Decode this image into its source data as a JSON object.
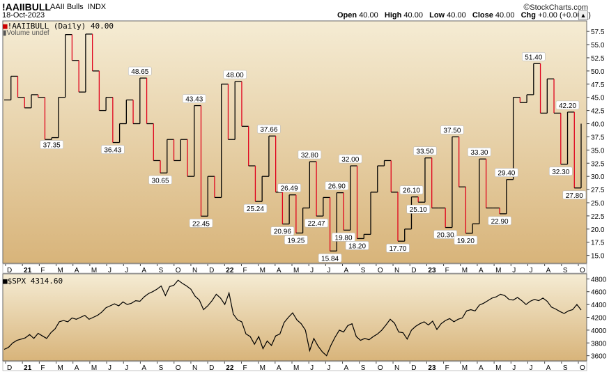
{
  "header": {
    "symbol": "!AAIIBULL",
    "name": "AAII Bulls",
    "exchange": "INDX",
    "date": "18-Oct-2023",
    "open_label": "Open",
    "open": "40.00",
    "high_label": "High",
    "high": "40.00",
    "low_label": "Low",
    "low": "40.00",
    "close_label": "Close",
    "close": "40.00",
    "chg_label": "Chg",
    "chg": "+0.00 (+0.00%)",
    "brand": "StockCharts.com"
  },
  "colors": {
    "panel_top": "#f5ecd4",
    "panel_bottom": "#d8b47a",
    "up_line": "#000000",
    "down_line": "#e0001b"
  },
  "chart_data": [
    {
      "type": "line",
      "title": "!AAIIBULL (Daily) 40.00",
      "volume_label": "Volume undef",
      "x_tick_labels": [
        "D",
        "21",
        "F",
        "M",
        "A",
        "M",
        "J",
        "J",
        "A",
        "S",
        "O",
        "N",
        "D",
        "22",
        "F",
        "M",
        "A",
        "M",
        "J",
        "J",
        "A",
        "S",
        "O",
        "N",
        "D",
        "23",
        "F",
        "M",
        "A",
        "M",
        "J",
        "J",
        "A",
        "S",
        "O"
      ],
      "y_ticks": [
        "57.5",
        "55.0",
        "52.5",
        "50.0",
        "47.5",
        "45.0",
        "42.5",
        "40.0",
        "37.5",
        "35.0",
        "32.5",
        "30.0",
        "27.5",
        "25.0",
        "22.5",
        "20.0",
        "17.5",
        "15.0"
      ],
      "ylim": [
        13.5,
        59.5
      ],
      "weekly_values": [
        44.5,
        49.0,
        45.0,
        43.0,
        45.5,
        45.0,
        37.0,
        37.35,
        45.0,
        56.9,
        52.0,
        46.0,
        57.0,
        50.0,
        42.5,
        45.0,
        36.43,
        40.0,
        44.5,
        40.0,
        48.65,
        40.0,
        33.0,
        30.65,
        37.0,
        33.0,
        37.0,
        30.0,
        43.43,
        22.45,
        30.0,
        26.0,
        47.5,
        37.0,
        48.0,
        39.5,
        32.0,
        25.24,
        30.0,
        37.66,
        27.0,
        20.96,
        26.49,
        19.25,
        24.0,
        32.8,
        22.47,
        26.0,
        15.84,
        26.9,
        19.8,
        32.0,
        18.2,
        19.0,
        27.0,
        32.0,
        33.0,
        27.0,
        17.7,
        20.0,
        26.1,
        25.1,
        33.5,
        24.0,
        24.0,
        20.3,
        37.5,
        28.0,
        19.2,
        21.0,
        33.3,
        24.0,
        24.0,
        22.9,
        29.4,
        45.0,
        44.0,
        45.5,
        51.4,
        42.0,
        48.5,
        42.0,
        32.3,
        42.2,
        27.8,
        40.0
      ],
      "down_color_name": "red",
      "data_labels": [
        {
          "index": 7,
          "value": "37.35",
          "pos": "below"
        },
        {
          "index": 16,
          "value": "36.43",
          "pos": "below"
        },
        {
          "index": 20,
          "value": "48.65",
          "pos": "above"
        },
        {
          "index": 23,
          "value": "30.65",
          "pos": "below"
        },
        {
          "index": 28,
          "value": "43.43",
          "pos": "above"
        },
        {
          "index": 29,
          "value": "22.45",
          "pos": "below"
        },
        {
          "index": 34,
          "value": "48.00",
          "pos": "above"
        },
        {
          "index": 37,
          "value": "25.24",
          "pos": "below"
        },
        {
          "index": 39,
          "value": "37.66",
          "pos": "above"
        },
        {
          "index": 41,
          "value": "20.96",
          "pos": "below"
        },
        {
          "index": 42,
          "value": "26.49",
          "pos": "above"
        },
        {
          "index": 43,
          "value": "19.25",
          "pos": "below"
        },
        {
          "index": 45,
          "value": "32.80",
          "pos": "above"
        },
        {
          "index": 46,
          "value": "22.47",
          "pos": "below"
        },
        {
          "index": 48,
          "value": "15.84",
          "pos": "below"
        },
        {
          "index": 49,
          "value": "26.90",
          "pos": "above"
        },
        {
          "index": 50,
          "value": "19.80",
          "pos": "below"
        },
        {
          "index": 51,
          "value": "32.00",
          "pos": "above"
        },
        {
          "index": 52,
          "value": "18.20",
          "pos": "below"
        },
        {
          "index": 58,
          "value": "17.70",
          "pos": "below"
        },
        {
          "index": 60,
          "value": "26.10",
          "pos": "above"
        },
        {
          "index": 61,
          "value": "25.10",
          "pos": "below"
        },
        {
          "index": 62,
          "value": "33.50",
          "pos": "above"
        },
        {
          "index": 65,
          "value": "20.30",
          "pos": "below"
        },
        {
          "index": 66,
          "value": "37.50",
          "pos": "above"
        },
        {
          "index": 68,
          "value": "19.20",
          "pos": "below"
        },
        {
          "index": 70,
          "value": "33.30",
          "pos": "above"
        },
        {
          "index": 73,
          "value": "22.90",
          "pos": "below"
        },
        {
          "index": 74,
          "value": "29.40",
          "pos": "above"
        },
        {
          "index": 78,
          "value": "51.40",
          "pos": "above"
        },
        {
          "index": 82,
          "value": "32.30",
          "pos": "below"
        },
        {
          "index": 83,
          "value": "42.20",
          "pos": "above"
        },
        {
          "index": 84,
          "value": "27.80",
          "pos": "below"
        }
      ]
    },
    {
      "type": "line",
      "title": "$SPX 4314.60",
      "x_tick_labels": [
        "D",
        "21",
        "F",
        "M",
        "A",
        "M",
        "J",
        "J",
        "A",
        "S",
        "O",
        "N",
        "D",
        "22",
        "F",
        "M",
        "A",
        "M",
        "J",
        "J",
        "A",
        "S",
        "O",
        "N",
        "D",
        "23",
        "F",
        "M",
        "A",
        "M",
        "J",
        "J",
        "A",
        "S",
        "O"
      ],
      "y_ticks": [
        "4800",
        "4600",
        "4400",
        "4200",
        "4000",
        "3800",
        "3600"
      ],
      "ylim": [
        3520,
        4880
      ],
      "weekly_values": [
        3700,
        3730,
        3800,
        3840,
        3860,
        3880,
        3930,
        3870,
        3950,
        3910,
        3870,
        3960,
        4020,
        4130,
        4150,
        4130,
        4190,
        4170,
        4200,
        4230,
        4170,
        4200,
        4230,
        4280,
        4350,
        4380,
        4410,
        4380,
        4440,
        4400,
        4420,
        4460,
        4450,
        4520,
        4570,
        4600,
        4640,
        4690,
        4540,
        4680,
        4700,
        4780,
        4730,
        4690,
        4640,
        4530,
        4470,
        4320,
        4380,
        4460,
        4560,
        4500,
        4400,
        4580,
        4250,
        4160,
        4130,
        3940,
        3900,
        3780,
        3900,
        3710,
        3830,
        3760,
        3910,
        3940,
        4120,
        4200,
        4270,
        4160,
        4100,
        4000,
        3680,
        3870,
        3750,
        3660,
        3600,
        3760,
        3890,
        4000,
        3970,
        4070,
        4100,
        3900,
        3840,
        3870,
        3850,
        3900,
        3940,
        4000,
        4080,
        4170,
        4110,
        3970,
        3960,
        3860,
        4000,
        4060,
        4100,
        4130,
        4080,
        4140,
        4010,
        4100,
        4150,
        4180,
        4130,
        4170,
        4190,
        4300,
        4320,
        4300,
        4390,
        4420,
        4460,
        4500,
        4520,
        4560,
        4540,
        4480,
        4470,
        4510,
        4460,
        4400,
        4450,
        4480,
        4460,
        4500,
        4450,
        4360,
        4330,
        4290,
        4260,
        4300,
        4320,
        4400,
        4314.6
      ],
      "line_color": "#000000"
    }
  ]
}
